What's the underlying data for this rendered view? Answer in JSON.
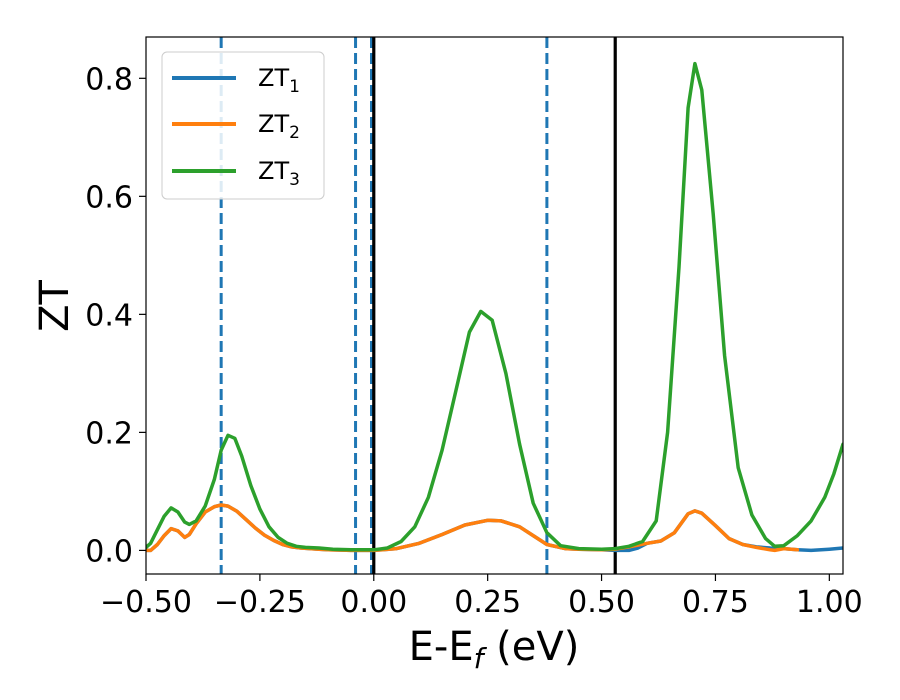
{
  "chart_data": {
    "type": "line",
    "xlabel_main": "E-E",
    "xlabel_sub": "f",
    "xlabel_unit": " (eV)",
    "ylabel": "ZT",
    "xlim": [
      -0.5,
      1.03
    ],
    "ylim": [
      -0.04,
      0.87
    ],
    "xticks": [
      -0.5,
      -0.25,
      0.0,
      0.25,
      0.5,
      0.75,
      1.0
    ],
    "xtick_labels": [
      "−0.50",
      "−0.25",
      "0.00",
      "0.25",
      "0.50",
      "0.75",
      "1.00"
    ],
    "yticks": [
      0.0,
      0.2,
      0.4,
      0.6,
      0.8
    ],
    "ytick_labels": [
      "0.0",
      "0.2",
      "0.4",
      "0.6",
      "0.8"
    ],
    "grid": false,
    "legend_position": "top-left",
    "series": [
      {
        "name": "ZT",
        "subscript": "1",
        "color": "#1f77b4",
        "points": [
          [
            -0.5,
            0.0
          ],
          [
            -0.49,
            0.0
          ],
          [
            -0.475,
            0.01
          ],
          [
            -0.46,
            0.025
          ],
          [
            -0.445,
            0.037
          ],
          [
            -0.43,
            0.033
          ],
          [
            -0.415,
            0.022
          ],
          [
            -0.405,
            0.027
          ],
          [
            -0.39,
            0.045
          ],
          [
            -0.37,
            0.065
          ],
          [
            -0.35,
            0.074
          ],
          [
            -0.335,
            0.077
          ],
          [
            -0.32,
            0.075
          ],
          [
            -0.3,
            0.066
          ],
          [
            -0.28,
            0.052
          ],
          [
            -0.26,
            0.038
          ],
          [
            -0.24,
            0.026
          ],
          [
            -0.22,
            0.017
          ],
          [
            -0.2,
            0.01
          ],
          [
            -0.18,
            0.006
          ],
          [
            -0.16,
            0.004
          ],
          [
            -0.14,
            0.003
          ],
          [
            -0.12,
            0.002
          ],
          [
            -0.1,
            0.001
          ],
          [
            -0.05,
            0.0
          ],
          [
            0.0,
            0.0
          ],
          [
            0.05,
            0.003
          ],
          [
            0.1,
            0.012
          ],
          [
            0.15,
            0.027
          ],
          [
            0.2,
            0.043
          ],
          [
            0.25,
            0.051
          ],
          [
            0.28,
            0.05
          ],
          [
            0.32,
            0.04
          ],
          [
            0.35,
            0.025
          ],
          [
            0.38,
            0.01
          ],
          [
            0.42,
            0.003
          ],
          [
            0.45,
            0.002
          ],
          [
            0.5,
            0.001
          ],
          [
            0.53,
            0.0
          ],
          [
            0.56,
            0.0
          ],
          [
            0.58,
            0.004
          ],
          [
            0.6,
            0.012
          ],
          [
            0.63,
            0.016
          ],
          [
            0.66,
            0.03
          ],
          [
            0.69,
            0.062
          ],
          [
            0.705,
            0.067
          ],
          [
            0.72,
            0.063
          ],
          [
            0.75,
            0.042
          ],
          [
            0.78,
            0.02
          ],
          [
            0.81,
            0.01
          ],
          [
            0.84,
            0.006
          ],
          [
            0.87,
            0.004
          ],
          [
            0.9,
            0.003
          ],
          [
            0.93,
            0.001
          ],
          [
            0.96,
            0.0
          ],
          [
            1.0,
            0.002
          ],
          [
            1.03,
            0.004
          ]
        ]
      },
      {
        "name": "ZT",
        "subscript": "2",
        "color": "#ff7f0e",
        "points": [
          [
            -0.5,
            0.0
          ],
          [
            -0.49,
            0.0
          ],
          [
            -0.475,
            0.01
          ],
          [
            -0.46,
            0.025
          ],
          [
            -0.445,
            0.037
          ],
          [
            -0.43,
            0.033
          ],
          [
            -0.415,
            0.022
          ],
          [
            -0.405,
            0.027
          ],
          [
            -0.39,
            0.045
          ],
          [
            -0.37,
            0.065
          ],
          [
            -0.35,
            0.074
          ],
          [
            -0.335,
            0.077
          ],
          [
            -0.32,
            0.075
          ],
          [
            -0.3,
            0.066
          ],
          [
            -0.28,
            0.052
          ],
          [
            -0.26,
            0.038
          ],
          [
            -0.24,
            0.026
          ],
          [
            -0.22,
            0.017
          ],
          [
            -0.2,
            0.01
          ],
          [
            -0.18,
            0.006
          ],
          [
            -0.16,
            0.004
          ],
          [
            -0.14,
            0.003
          ],
          [
            -0.12,
            0.002
          ],
          [
            -0.1,
            0.001
          ],
          [
            -0.05,
            0.0
          ],
          [
            0.0,
            0.0
          ],
          [
            0.05,
            0.003
          ],
          [
            0.1,
            0.012
          ],
          [
            0.15,
            0.027
          ],
          [
            0.2,
            0.043
          ],
          [
            0.25,
            0.051
          ],
          [
            0.28,
            0.05
          ],
          [
            0.32,
            0.04
          ],
          [
            0.35,
            0.025
          ],
          [
            0.38,
            0.01
          ],
          [
            0.42,
            0.003
          ],
          [
            0.45,
            0.002
          ],
          [
            0.5,
            0.001
          ],
          [
            0.53,
            0.002
          ],
          [
            0.56,
            0.006
          ],
          [
            0.6,
            0.012
          ],
          [
            0.63,
            0.016
          ],
          [
            0.66,
            0.03
          ],
          [
            0.69,
            0.062
          ],
          [
            0.705,
            0.067
          ],
          [
            0.72,
            0.063
          ],
          [
            0.75,
            0.042
          ],
          [
            0.78,
            0.02
          ],
          [
            0.81,
            0.01
          ],
          [
            0.84,
            0.005
          ],
          [
            0.87,
            0.001
          ],
          [
            0.88,
            0.0
          ],
          [
            0.9,
            0.003
          ],
          [
            0.93,
            0.001
          ]
        ]
      },
      {
        "name": "ZT",
        "subscript": "3",
        "color": "#2ca02c",
        "points": [
          [
            -0.5,
            0.005
          ],
          [
            -0.49,
            0.012
          ],
          [
            -0.475,
            0.035
          ],
          [
            -0.46,
            0.058
          ],
          [
            -0.445,
            0.072
          ],
          [
            -0.43,
            0.065
          ],
          [
            -0.415,
            0.048
          ],
          [
            -0.405,
            0.044
          ],
          [
            -0.39,
            0.05
          ],
          [
            -0.37,
            0.075
          ],
          [
            -0.35,
            0.12
          ],
          [
            -0.335,
            0.17
          ],
          [
            -0.32,
            0.195
          ],
          [
            -0.305,
            0.19
          ],
          [
            -0.29,
            0.16
          ],
          [
            -0.27,
            0.11
          ],
          [
            -0.25,
            0.07
          ],
          [
            -0.23,
            0.04
          ],
          [
            -0.21,
            0.022
          ],
          [
            -0.19,
            0.012
          ],
          [
            -0.17,
            0.007
          ],
          [
            -0.15,
            0.005
          ],
          [
            -0.12,
            0.004
          ],
          [
            -0.09,
            0.002
          ],
          [
            -0.05,
            0.001
          ],
          [
            0.0,
            0.001
          ],
          [
            0.03,
            0.004
          ],
          [
            0.06,
            0.015
          ],
          [
            0.09,
            0.04
          ],
          [
            0.12,
            0.09
          ],
          [
            0.15,
            0.17
          ],
          [
            0.18,
            0.27
          ],
          [
            0.21,
            0.37
          ],
          [
            0.235,
            0.405
          ],
          [
            0.26,
            0.39
          ],
          [
            0.29,
            0.3
          ],
          [
            0.32,
            0.18
          ],
          [
            0.35,
            0.08
          ],
          [
            0.38,
            0.03
          ],
          [
            0.41,
            0.008
          ],
          [
            0.45,
            0.003
          ],
          [
            0.5,
            0.002
          ],
          [
            0.53,
            0.003
          ],
          [
            0.56,
            0.007
          ],
          [
            0.59,
            0.015
          ],
          [
            0.62,
            0.05
          ],
          [
            0.645,
            0.2
          ],
          [
            0.67,
            0.48
          ],
          [
            0.69,
            0.75
          ],
          [
            0.705,
            0.825
          ],
          [
            0.72,
            0.78
          ],
          [
            0.745,
            0.57
          ],
          [
            0.77,
            0.33
          ],
          [
            0.8,
            0.14
          ],
          [
            0.83,
            0.06
          ],
          [
            0.86,
            0.02
          ],
          [
            0.88,
            0.007
          ],
          [
            0.9,
            0.008
          ],
          [
            0.93,
            0.025
          ],
          [
            0.96,
            0.05
          ],
          [
            0.99,
            0.09
          ],
          [
            1.01,
            0.13
          ],
          [
            1.03,
            0.18
          ]
        ]
      }
    ],
    "vlines": [
      {
        "x": -0.335,
        "style": "dashed",
        "color": "#1f77b4"
      },
      {
        "x": -0.04,
        "style": "dashed",
        "color": "#1f77b4"
      },
      {
        "x": -0.005,
        "style": "dashed",
        "color": "#1f77b4"
      },
      {
        "x": 0.0,
        "style": "solid",
        "color": "#000000"
      },
      {
        "x": 0.38,
        "style": "dashed",
        "color": "#1f77b4"
      },
      {
        "x": 0.53,
        "style": "solid",
        "color": "#000000"
      }
    ]
  }
}
